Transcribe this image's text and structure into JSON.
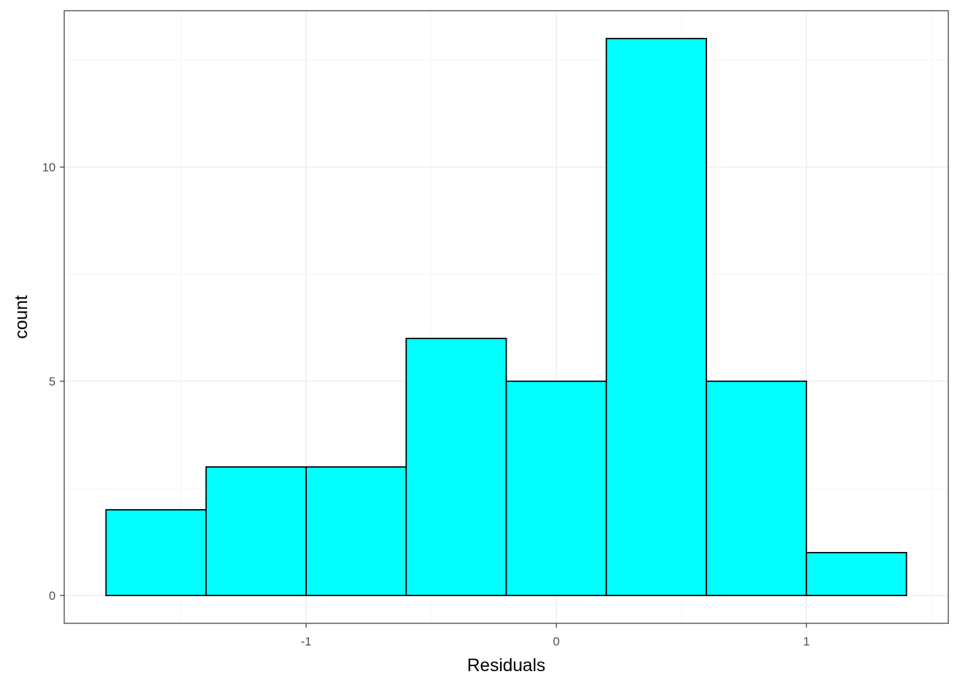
{
  "chart_data": {
    "type": "bar",
    "title": "",
    "xlabel": "Residuals",
    "ylabel": "count",
    "bin_edges": [
      -1.8,
      -1.4,
      -1.0,
      -0.6,
      -0.2,
      0.2,
      0.6,
      1.0,
      1.4
    ],
    "values": [
      2,
      3,
      3,
      6,
      5,
      13,
      5,
      1
    ],
    "xlim": [
      -1.967,
      1.567
    ],
    "ylim": [
      -0.65,
      13.65
    ],
    "x_ticks": [
      {
        "value": -1,
        "label": "-1"
      },
      {
        "value": 0,
        "label": "0"
      },
      {
        "value": 1,
        "label": "1"
      }
    ],
    "y_ticks": [
      {
        "value": 0,
        "label": "0"
      },
      {
        "value": 5,
        "label": "5"
      },
      {
        "value": 10,
        "label": "10"
      }
    ],
    "x_minor_gridlines": [
      -1.5,
      -0.5,
      0.5,
      1.5
    ],
    "y_minor_gridlines": [
      2.5,
      7.5,
      12.5
    ],
    "grid": true,
    "colors": {
      "bar_fill": "#00FFFF",
      "bar_stroke": "#000000",
      "grid_major": "#EBEBEB",
      "grid_minor": "#F5F5F5",
      "panel_border": "#333333"
    }
  }
}
